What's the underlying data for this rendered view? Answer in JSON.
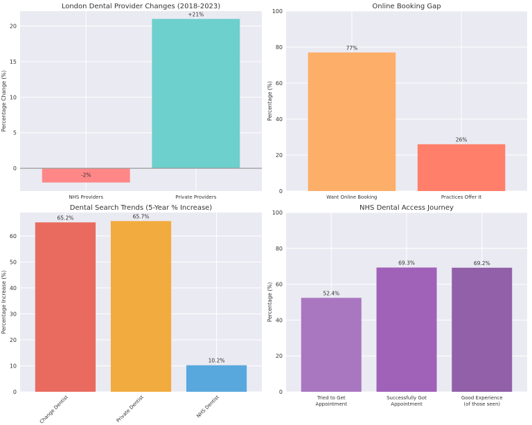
{
  "chart_data": [
    {
      "type": "bar",
      "title": "London Dental Provider Changes (2018-2023)",
      "ylabel": "Percentage Change (%)",
      "categories": [
        "NHS Providers",
        "Private Providers"
      ],
      "values": [
        -2,
        21
      ],
      "data_labels": [
        "-2%",
        "+21%"
      ],
      "colors": [
        "#ff8787",
        "#6dd0cc"
      ],
      "ylim": [
        -3.2,
        22.1
      ],
      "yticks": [
        0,
        5,
        10,
        15,
        20
      ],
      "zero_line": true,
      "grid": true
    },
    {
      "type": "bar",
      "title": "Online Booking Gap",
      "ylabel": "Percentage (%)",
      "categories": [
        "Want Online Booking",
        "Practices Offer It"
      ],
      "values": [
        77,
        26
      ],
      "data_labels": [
        "77%",
        "26%"
      ],
      "colors": [
        "#fdae68",
        "#ff7f6a"
      ],
      "ylim": [
        0,
        100
      ],
      "yticks": [
        0,
        20,
        40,
        60,
        80,
        100
      ],
      "grid": true
    },
    {
      "type": "bar",
      "title": "Dental Search Trends (5-Year % Increase)",
      "ylabel": "Percentage Increase (%)",
      "categories": [
        "Change Dentist",
        "Private Dentist",
        "NHS Dentist"
      ],
      "values": [
        65.2,
        65.7,
        10.2
      ],
      "data_labels": [
        "65.2%",
        "65.7%",
        "10.2%"
      ],
      "colors": [
        "#e96b5f",
        "#f2ab3e",
        "#58a8de"
      ],
      "ylim": [
        0,
        69
      ],
      "yticks": [
        0,
        10,
        20,
        30,
        40,
        50,
        60
      ],
      "rotated_xticks": true,
      "grid": true
    },
    {
      "type": "bar",
      "title": "NHS Dental Access Journey",
      "ylabel": "Percentage (%)",
      "categories": [
        "Tried to Get\nAppointment",
        "Successfully Got\nAppointment",
        "Good Experience\n(of those seen)"
      ],
      "values": [
        52.4,
        69.3,
        69.2
      ],
      "data_labels": [
        "52.4%",
        "69.3%",
        "69.2%"
      ],
      "colors": [
        "#a976c0",
        "#a061b8",
        "#9160a8"
      ],
      "ylim": [
        0,
        100
      ],
      "yticks": [
        0,
        20,
        40,
        60,
        80,
        100
      ],
      "grid": true
    }
  ]
}
